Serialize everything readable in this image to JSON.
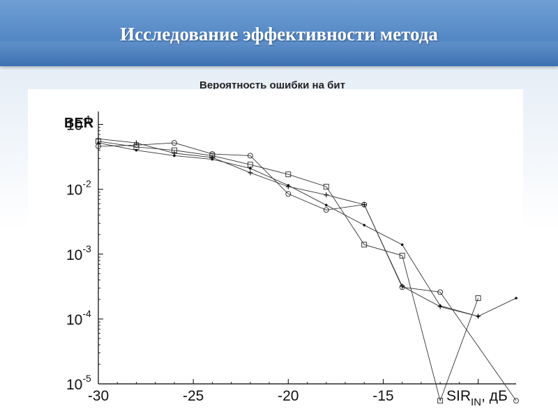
{
  "slide": {
    "title": "Исследование эффективности метода"
  },
  "chart_data": {
    "type": "line",
    "title": "Вероятность ошибки на бит",
    "ylabel": "BER",
    "xlabel_main": "SIR",
    "xlabel_sub": "IN",
    "xlabel_unit": ", дБ",
    "yscale": "log",
    "xlim": [
      -30,
      -8
    ],
    "ylim_exp": [
      -5,
      -0.8
    ],
    "x_ticks": [
      -30,
      -25,
      -20,
      -15
    ],
    "x_tick_labels": [
      "-30",
      "-25",
      "-20",
      "-15"
    ],
    "y_tick_exponents": [
      -5,
      -4,
      -3,
      -2,
      -1
    ],
    "y_tick_base": "10",
    "y_tick_labels": [
      "-5",
      "-4",
      "-3",
      "-2",
      "-1"
    ],
    "grid": false,
    "series": [
      {
        "marker": "square",
        "x": [
          -30,
          -28,
          -26,
          -24,
          -22,
          -20,
          -18,
          -16,
          -14,
          -12,
          -10
        ],
        "y": [
          0.055,
          0.045,
          0.04,
          0.033,
          0.024,
          0.017,
          0.011,
          0.0014,
          0.00095,
          5.5e-06,
          0.00021
        ]
      },
      {
        "marker": "circle",
        "x": [
          -30,
          -28,
          -26,
          -24,
          -22,
          -20,
          -18,
          -16,
          -14,
          -12,
          -8
        ],
        "y": [
          0.046,
          0.048,
          0.052,
          0.035,
          0.033,
          0.0085,
          0.0048,
          0.0058,
          0.00031,
          0.00026,
          5.5e-06
        ]
      },
      {
        "marker": "plus",
        "x": [
          -30,
          -28,
          -26,
          -24,
          -22,
          -20,
          -18,
          -16,
          -14,
          -12,
          -10
        ],
        "y": [
          0.06,
          0.052,
          0.036,
          0.031,
          0.018,
          0.011,
          0.0082,
          0.0058,
          0.00032,
          0.000155,
          0.00011
        ]
      },
      {
        "marker": "dot",
        "x": [
          -30,
          -28,
          -26,
          -24,
          -22,
          -20,
          -18,
          -16,
          -14,
          -12,
          -10,
          -8
        ],
        "y": [
          0.052,
          0.04,
          0.033,
          0.029,
          0.021,
          0.0115,
          0.0057,
          0.0028,
          0.0014,
          0.00016,
          0.00011,
          0.00021
        ]
      }
    ]
  }
}
